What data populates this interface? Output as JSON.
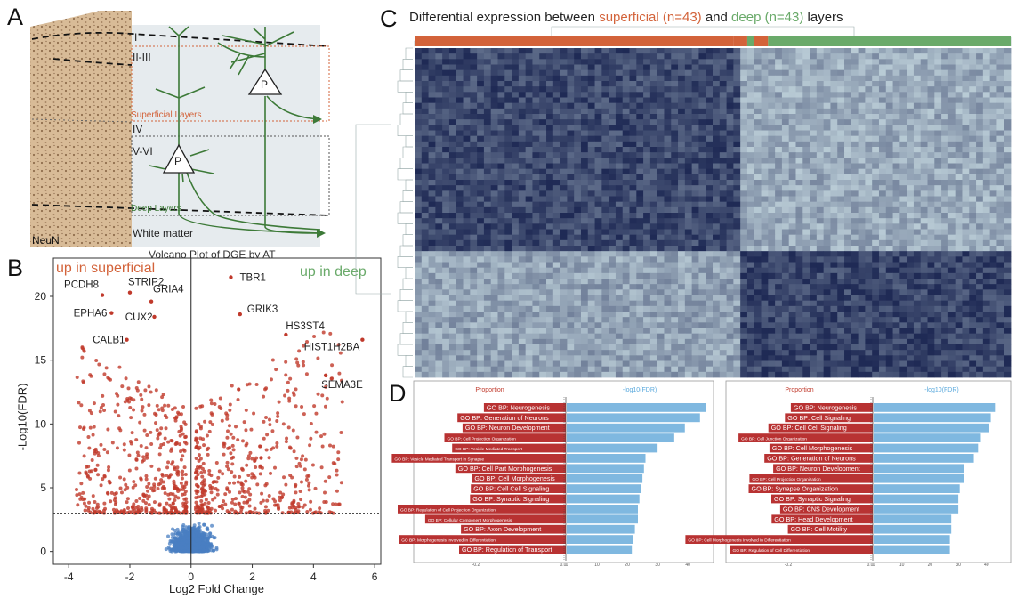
{
  "panels": {
    "a": {
      "letter": "A",
      "layer_labels": [
        "I",
        "II-III",
        "IV",
        "V-VI"
      ],
      "superficial_label": "Superficial Layers",
      "deep_label": "Deep Layers",
      "white_matter_label": "White matter",
      "stain_label": "NeuN",
      "neuron_label": "P",
      "colors": {
        "tissue": "#d4b48e",
        "schematic_bg": "#e9edf0",
        "neuron": "#3d7a38",
        "superficial": "#d3633a",
        "deep": "#3d7a38"
      }
    },
    "b": {
      "letter": "B",
      "annotation_superficial": "up in superficial",
      "annotation_deep": "up in deep",
      "gene_labels": [
        "PCDH8",
        "STRIP2",
        "GRIA4",
        "EPHA6",
        "CUX2",
        "CALB1",
        "TBR1",
        "GRIK3",
        "HS3ST4",
        "HIST1H2BA",
        "SEMA3E"
      ]
    },
    "c": {
      "letter": "C",
      "title_prefix": "Differential expression between ",
      "title_superficial": "superficial (n=43)",
      "title_mid": " and ",
      "title_deep": "deep (n=43)",
      "title_suffix": " layers"
    },
    "d": {
      "letter": "D",
      "headers": {
        "left": "Proportion",
        "right": "-log10(FDR)"
      },
      "prop_ticks": [
        "-0.2",
        "0.0"
      ],
      "fdr_ticks": [
        "0",
        "10",
        "20",
        "30",
        "40"
      ]
    }
  },
  "chart_data": [
    {
      "type": "scatter",
      "title": "Volcano Plot of DGE by AT",
      "xlabel": "Log2 Fold Change",
      "ylabel": "-Log10(FDR)",
      "xlim": [
        -4.5,
        6.2
      ],
      "ylim": [
        -1,
        23
      ],
      "xticks": [
        -4,
        -2,
        0,
        2,
        4,
        6
      ],
      "yticks": [
        0,
        5,
        10,
        15,
        20
      ],
      "threshold_fdr": 3,
      "significant_color": "#c0392b",
      "nonsignificant_color": "#4a7fc1",
      "labeled_points": [
        {
          "gene": "PCDH8",
          "x": -2.9,
          "y": 20.1
        },
        {
          "gene": "STRIP2",
          "x": -2.0,
          "y": 20.3
        },
        {
          "gene": "GRIA4",
          "x": -1.3,
          "y": 19.6
        },
        {
          "gene": "EPHA6",
          "x": -2.6,
          "y": 18.7
        },
        {
          "gene": "CUX2",
          "x": -1.2,
          "y": 18.4
        },
        {
          "gene": "CALB1",
          "x": -2.1,
          "y": 16.6
        },
        {
          "gene": "TBR1",
          "x": 1.3,
          "y": 21.5
        },
        {
          "gene": "GRIK3",
          "x": 1.6,
          "y": 18.6
        },
        {
          "gene": "HS3ST4",
          "x": 3.1,
          "y": 17.0
        },
        {
          "gene": "HIST1H2BA",
          "x": 5.6,
          "y": 16.6
        },
        {
          "gene": "SEMA3E",
          "x": 4.4,
          "y": 13.8
        }
      ]
    },
    {
      "type": "heatmap",
      "samples": {
        "superficial": 43,
        "deep": 43
      },
      "column_groups": [
        "superficial",
        "superficial",
        "deep",
        "superficial",
        "deep"
      ],
      "group_colors": {
        "superficial": "#d3633a",
        "deep": "#6aaa6a"
      },
      "row_clusters": [
        "up in superficial",
        "up in deep"
      ],
      "color_scale": [
        "#1f2a55",
        "#c8dbe2"
      ]
    },
    {
      "type": "bar",
      "series": [
        {
          "categories": [
            "GO BP: Neurogenesis",
            "GO BP: Generation of Neurons",
            "GO BP: Neuron Development",
            "GO BP: Cell Projection Organization",
            "GO BP: Vesicle Mediated Transport",
            "GO BP: Vesicle Mediated Transport in Synapse",
            "GO BP: Cell Part Morphogenesis",
            "GO BP: Cell Morphogenesis",
            "GO BP: Cell Cell Signaling",
            "GO BP: Synaptic Signaling",
            "GO BP: Regulation of Cell Projection Organization",
            "GO BP: Cellular Component Morphogenesis",
            "GO BP: Axon Development",
            "GO BP: Morphogenesis Involved in Differentiation",
            "GO BP: Regulation of Transport"
          ],
          "proportion": [
            -0.07,
            -0.07,
            -0.08,
            -0.05,
            -0.045,
            -0.12,
            -0.06,
            -0.055,
            -0.05,
            -0.06,
            -0.065,
            -0.07,
            -0.1,
            -0.07,
            -0.05
          ],
          "neg_log10_fdr": [
            46,
            44,
            39,
            35.5,
            30,
            26,
            25.5,
            25,
            24.5,
            24,
            23.5,
            23.5,
            22.5,
            22,
            21.5
          ]
        },
        {
          "categories": [
            "GO BP: Neurogenesis",
            "GO BP: Cell Signaling",
            "GO BP: Cell Cell Signaling",
            "GO BP: Cell Junction Organization",
            "GO BP: Cell Morphogenesis",
            "GO BP: Generation of Neurons",
            "GO BP: Neuron Development",
            "GO BP: Cell Projection Organization",
            "GO BP: Synapse Organization",
            "GO BP: Synaptic Signaling",
            "GO BP: CNS Development",
            "GO BP: Head Development",
            "GO BP: Cell Motility",
            "GO BP: Cell Morphogenesis Involved in Differentiation",
            "GO BP: Regulation of Cell Differentiation"
          ],
          "proportion": [
            -0.07,
            -0.07,
            -0.075,
            -0.1,
            -0.08,
            -0.07,
            -0.07,
            -0.055,
            -0.12,
            -0.075,
            -0.075,
            -0.09,
            -0.07,
            -0.085,
            -0.06
          ],
          "neg_log10_fdr": [
            43,
            41.5,
            41,
            38,
            37,
            35.5,
            32,
            32,
            30.5,
            30,
            30,
            27.5,
            27.5,
            27,
            27
          ]
        }
      ]
    }
  ]
}
